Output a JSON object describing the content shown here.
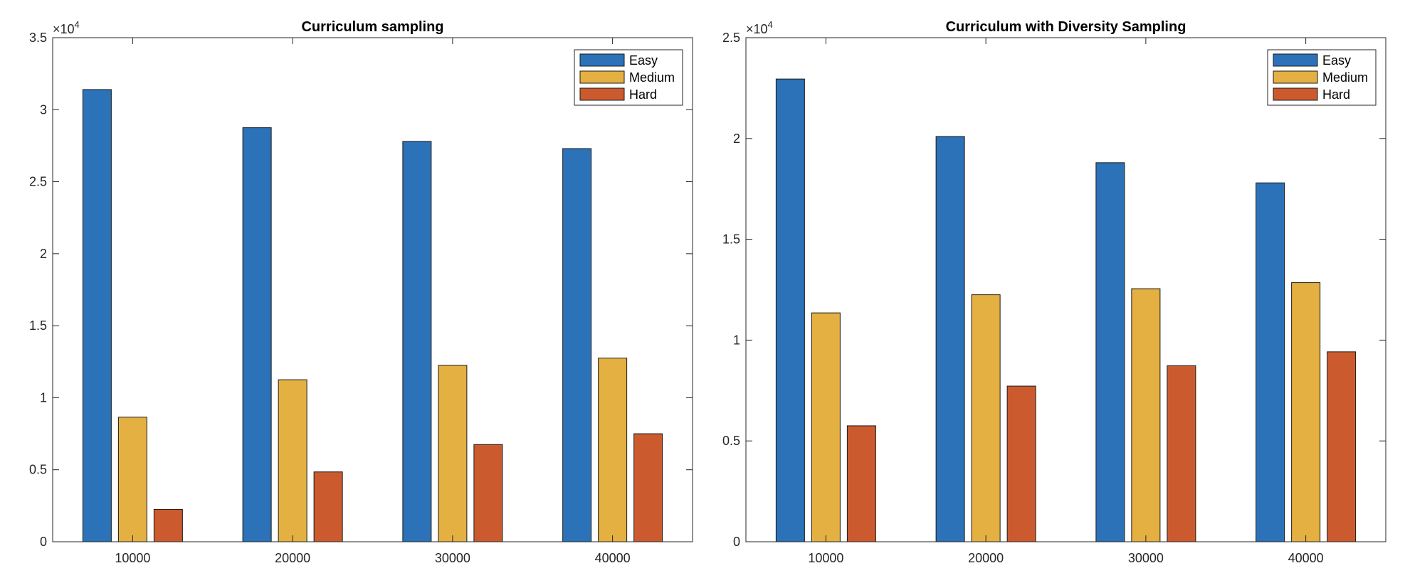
{
  "colors": {
    "easy": "#2c72b8",
    "medium": "#e4b042",
    "hard": "#cb5b2e",
    "axis": "#262626",
    "bar_edge": "#1a1a1a"
  },
  "chart_data": [
    {
      "type": "bar",
      "title": "Curriculum sampling",
      "xlabel": "",
      "ylabel": "",
      "exponent_label": "×10",
      "exponent_power": "4",
      "categories": [
        "10000",
        "20000",
        "30000",
        "40000"
      ],
      "y_ticks": [
        0,
        0.5,
        1,
        1.5,
        2,
        2.5,
        3,
        3.5
      ],
      "y_tick_labels": [
        "0",
        "0.5",
        "1",
        "1.5",
        "2",
        "2.5",
        "3",
        "3.5"
      ],
      "ylim": [
        0,
        3.5
      ],
      "legend_position": "top-right",
      "series": [
        {
          "name": "Easy",
          "color_key": "easy",
          "values": [
            3.14,
            2.875,
            2.78,
            2.73
          ]
        },
        {
          "name": "Medium",
          "color_key": "medium",
          "values": [
            0.865,
            1.125,
            1.225,
            1.275
          ]
        },
        {
          "name": "Hard",
          "color_key": "hard",
          "values": [
            0.225,
            0.485,
            0.675,
            0.75
          ]
        }
      ]
    },
    {
      "type": "bar",
      "title": "Curriculum with Diversity Sampling",
      "xlabel": "",
      "ylabel": "",
      "exponent_label": "×10",
      "exponent_power": "4",
      "categories": [
        "10000",
        "20000",
        "30000",
        "40000"
      ],
      "y_ticks": [
        0,
        0.5,
        1,
        1.5,
        2,
        2.5
      ],
      "y_tick_labels": [
        "0",
        "0.5",
        "1",
        "1.5",
        "2",
        "2.5"
      ],
      "ylim": [
        0,
        2.5
      ],
      "legend_position": "top-right",
      "series": [
        {
          "name": "Easy",
          "color_key": "easy",
          "values": [
            2.295,
            2.01,
            1.88,
            1.78
          ]
        },
        {
          "name": "Medium",
          "color_key": "medium",
          "values": [
            1.135,
            1.225,
            1.255,
            1.285
          ]
        },
        {
          "name": "Hard",
          "color_key": "hard",
          "values": [
            0.575,
            0.772,
            0.873,
            0.942
          ]
        }
      ]
    }
  ]
}
